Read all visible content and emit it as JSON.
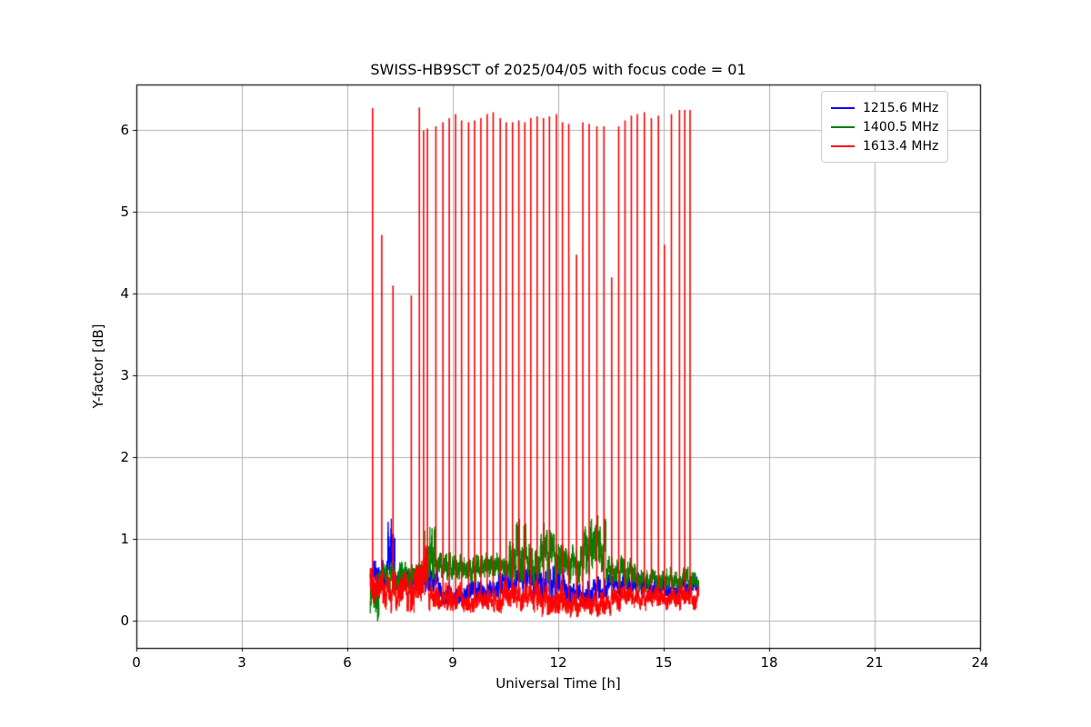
{
  "chart_data": {
    "type": "line",
    "title": "SWISS-HB9SCT of 2025/04/05 with focus code = 01",
    "xlabel": "Universal Time [h]",
    "ylabel": "Y-factor [dB]",
    "xlim": [
      0,
      24
    ],
    "ylim": [
      -0.33,
      6.56
    ],
    "xticks": [
      0,
      3,
      6,
      9,
      12,
      15,
      18,
      21,
      24
    ],
    "yticks": [
      0,
      1,
      2,
      3,
      4,
      5,
      6
    ],
    "grid": true,
    "grid_color": "#b0b0b0",
    "legend": {
      "position": "upper right",
      "entries": [
        {
          "label": "1215.6 MHz",
          "color": "#0000ff"
        },
        {
          "label": "1400.5 MHz",
          "color": "#008000"
        },
        {
          "label": "1613.4 MHz",
          "color": "#ff0000"
        }
      ]
    },
    "series": [
      {
        "name": "1215.6 MHz",
        "color": "#0000ff",
        "t_start": 6.65,
        "t_end": 16.0,
        "baseline": [
          {
            "t0": 6.65,
            "t1": 7.15,
            "mean": 0.55,
            "amp": 0.15
          },
          {
            "t0": 7.15,
            "t1": 7.35,
            "mean": 0.9,
            "amp": 0.3
          },
          {
            "t0": 7.35,
            "t1": 8.6,
            "mean": 0.5,
            "amp": 0.12
          },
          {
            "t0": 8.6,
            "t1": 10.3,
            "mean": 0.35,
            "amp": 0.12
          },
          {
            "t0": 10.3,
            "t1": 11.3,
            "mean": 0.5,
            "amp": 0.15
          },
          {
            "t0": 11.3,
            "t1": 12.2,
            "mean": 0.45,
            "amp": 0.2
          },
          {
            "t0": 12.2,
            "t1": 13.4,
            "mean": 0.35,
            "amp": 0.15
          },
          {
            "t0": 13.4,
            "t1": 14.5,
            "mean": 0.45,
            "amp": 0.12
          },
          {
            "t0": 14.5,
            "t1": 16.0,
            "mean": 0.4,
            "amp": 0.12
          }
        ],
        "spikes": [
          {
            "t": 7.25,
            "h": 1.25
          }
        ]
      },
      {
        "name": "1400.5 MHz",
        "color": "#008000",
        "t_start": 6.65,
        "t_end": 16.0,
        "baseline": [
          {
            "t0": 6.65,
            "t1": 6.9,
            "mean": 0.3,
            "amp": 0.25
          },
          {
            "t0": 6.9,
            "t1": 8.2,
            "mean": 0.55,
            "amp": 0.15
          },
          {
            "t0": 8.2,
            "t1": 8.5,
            "mean": 0.8,
            "amp": 0.28
          },
          {
            "t0": 8.5,
            "t1": 10.6,
            "mean": 0.65,
            "amp": 0.15
          },
          {
            "t0": 10.6,
            "t1": 11.1,
            "mean": 0.85,
            "amp": 0.3
          },
          {
            "t0": 11.1,
            "t1": 11.5,
            "mean": 0.7,
            "amp": 0.2
          },
          {
            "t0": 11.5,
            "t1": 12.1,
            "mean": 0.8,
            "amp": 0.25
          },
          {
            "t0": 12.1,
            "t1": 12.7,
            "mean": 0.7,
            "amp": 0.2
          },
          {
            "t0": 12.7,
            "t1": 13.35,
            "mean": 0.9,
            "amp": 0.3
          },
          {
            "t0": 13.35,
            "t1": 14.2,
            "mean": 0.6,
            "amp": 0.15
          },
          {
            "t0": 14.2,
            "t1": 16.0,
            "mean": 0.5,
            "amp": 0.12
          }
        ],
        "spikes": [
          {
            "t": 8.35,
            "h": 1.15
          },
          {
            "t": 10.9,
            "h": 1.25
          },
          {
            "t": 11.6,
            "h": 1.2
          },
          {
            "t": 12.95,
            "h": 1.25
          }
        ]
      },
      {
        "name": "1613.4 MHz",
        "color": "#ff0000",
        "t_start": 6.65,
        "t_end": 16.0,
        "baseline": [
          {
            "t0": 6.65,
            "t1": 7.1,
            "mean": 0.4,
            "amp": 0.2
          },
          {
            "t0": 7.1,
            "t1": 7.9,
            "mean": 0.35,
            "amp": 0.2
          },
          {
            "t0": 7.9,
            "t1": 8.3,
            "mean": 0.6,
            "amp": 0.28
          },
          {
            "t0": 8.3,
            "t1": 9.3,
            "mean": 0.3,
            "amp": 0.15
          },
          {
            "t0": 9.3,
            "t1": 10.4,
            "mean": 0.25,
            "amp": 0.12
          },
          {
            "t0": 10.4,
            "t1": 11.4,
            "mean": 0.3,
            "amp": 0.15
          },
          {
            "t0": 11.4,
            "t1": 12.2,
            "mean": 0.25,
            "amp": 0.16
          },
          {
            "t0": 12.2,
            "t1": 13.5,
            "mean": 0.2,
            "amp": 0.12
          },
          {
            "t0": 13.5,
            "t1": 16.0,
            "mean": 0.28,
            "amp": 0.12
          }
        ],
        "spikes": [
          {
            "t": 6.72,
            "h": 6.27
          },
          {
            "t": 6.98,
            "h": 4.72
          },
          {
            "t": 7.3,
            "h": 4.1
          },
          {
            "t": 7.82,
            "h": 3.98
          },
          {
            "t": 8.05,
            "h": 6.28
          },
          {
            "t": 8.17,
            "h": 6.0
          },
          {
            "t": 8.28,
            "h": 6.02
          },
          {
            "t": 8.52,
            "h": 6.05
          },
          {
            "t": 8.72,
            "h": 6.1
          },
          {
            "t": 8.9,
            "h": 6.15
          },
          {
            "t": 9.08,
            "h": 6.2
          },
          {
            "t": 9.25,
            "h": 6.12
          },
          {
            "t": 9.45,
            "h": 6.1
          },
          {
            "t": 9.62,
            "h": 6.12
          },
          {
            "t": 9.8,
            "h": 6.15
          },
          {
            "t": 9.98,
            "h": 6.2
          },
          {
            "t": 10.15,
            "h": 6.22
          },
          {
            "t": 10.35,
            "h": 6.15
          },
          {
            "t": 10.52,
            "h": 6.1
          },
          {
            "t": 10.7,
            "h": 6.1
          },
          {
            "t": 10.88,
            "h": 6.12
          },
          {
            "t": 11.05,
            "h": 6.1
          },
          {
            "t": 11.22,
            "h": 6.15
          },
          {
            "t": 11.4,
            "h": 6.17
          },
          {
            "t": 11.58,
            "h": 6.15
          },
          {
            "t": 11.75,
            "h": 6.17
          },
          {
            "t": 11.95,
            "h": 6.2
          },
          {
            "t": 12.12,
            "h": 6.1
          },
          {
            "t": 12.3,
            "h": 6.08
          },
          {
            "t": 12.52,
            "h": 4.48
          },
          {
            "t": 12.7,
            "h": 6.1
          },
          {
            "t": 12.88,
            "h": 6.08
          },
          {
            "t": 13.1,
            "h": 6.05
          },
          {
            "t": 13.3,
            "h": 6.05
          },
          {
            "t": 13.52,
            "h": 4.2
          },
          {
            "t": 13.72,
            "h": 6.05
          },
          {
            "t": 13.9,
            "h": 6.12
          },
          {
            "t": 14.08,
            "h": 6.18
          },
          {
            "t": 14.25,
            "h": 6.2
          },
          {
            "t": 14.45,
            "h": 6.22
          },
          {
            "t": 14.65,
            "h": 6.15
          },
          {
            "t": 14.85,
            "h": 6.18
          },
          {
            "t": 15.02,
            "h": 4.6
          },
          {
            "t": 15.22,
            "h": 6.2
          },
          {
            "t": 15.45,
            "h": 6.25
          },
          {
            "t": 15.6,
            "h": 6.25
          },
          {
            "t": 15.75,
            "h": 6.25
          }
        ]
      }
    ]
  }
}
